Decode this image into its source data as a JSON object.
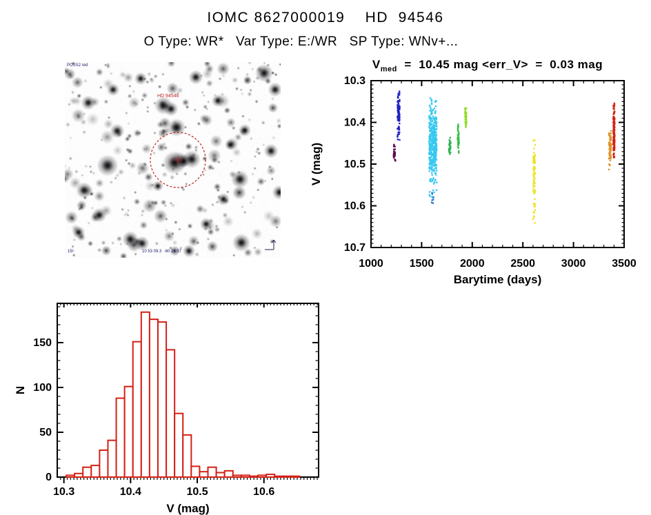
{
  "page": {
    "title": "IOMC 8627000019    HD  94546",
    "subtitle": "O Type: WR*   Var Type: E:/WR   SP Type: WNv+..."
  },
  "finder": {
    "survey_label": "POSS2 red",
    "target_label": "HD 94546",
    "coords_label": "10 53 09.3  -60 26 57",
    "scale_label": "15'",
    "circle_color": "#c22222",
    "seed": 77421,
    "n_random_stars": 320,
    "big_stars": [
      [
        159,
        146,
        6.5
      ],
      [
        184,
        141,
        5
      ],
      [
        172,
        144,
        3.5
      ],
      [
        162,
        95,
        5
      ],
      [
        143,
        63,
        5
      ],
      [
        154,
        68,
        4
      ],
      [
        190,
        22,
        4
      ],
      [
        110,
        24,
        3.5
      ],
      [
        62,
        150,
        6
      ],
      [
        28,
        186,
        4.5
      ],
      [
        76,
        100,
        4
      ],
      [
        34,
        59,
        4
      ],
      [
        289,
        16,
        5
      ],
      [
        254,
        170,
        5
      ],
      [
        256,
        262,
        5
      ],
      [
        95,
        257,
        4.5
      ],
      [
        112,
        263,
        4
      ],
      [
        222,
        56,
        3.5
      ],
      [
        305,
        40,
        4
      ],
      [
        299,
        129,
        4
      ],
      [
        20,
        247,
        3.5
      ],
      [
        230,
        199,
        3.5
      ],
      [
        261,
        99,
        3.5
      ],
      [
        311,
        189,
        4
      ],
      [
        180,
        274,
        3.5
      ],
      [
        50,
        222,
        4
      ],
      [
        135,
        180,
        3
      ],
      [
        205,
        235,
        3.5
      ],
      [
        240,
        120,
        3
      ],
      [
        70,
        40,
        3.5
      ]
    ]
  },
  "chart_data": [
    {
      "type": "scatter",
      "name": "lightcurve",
      "title": {
        "prefix": "V",
        "sub": "med",
        "rest": "  =  10.45 mag <err_V>  =  0.03 mag"
      },
      "xlabel": "Barytime (days)",
      "ylabel": "V (mag)",
      "xlim": [
        1000,
        3500
      ],
      "ylim": [
        10.3,
        10.7
      ],
      "y_inverted_magnitudes": true,
      "xticks": [
        1000,
        1500,
        2000,
        2500,
        3000,
        3500
      ],
      "yticks": [
        10.3,
        10.4,
        10.5,
        10.6,
        10.7
      ],
      "x_minor_step": 100,
      "y_minor_step": 0.01,
      "grid": false,
      "legend": false,
      "v_med": 10.45,
      "err_v": 0.03,
      "clusters": [
        {
          "label": "epoch-1230",
          "color": "#5e0b54",
          "t": 1232,
          "t_spread": 18,
          "n": 30,
          "v_mean": 10.472,
          "v_sigma": 0.012,
          "v_min": 10.448,
          "v_max": 10.497
        },
        {
          "label": "epoch-1270",
          "color": "#2222c0",
          "t": 1272,
          "t_spread": 22,
          "n": 95,
          "v_mean": 10.382,
          "v_sigma": 0.028,
          "v_min": 10.322,
          "v_max": 10.452
        },
        {
          "label": "epoch-1610",
          "color": "#38c8f0",
          "t": 1612,
          "t_spread": 75,
          "n": 430,
          "v_mean": 10.452,
          "v_sigma": 0.047,
          "v_min": 10.298,
          "v_max": 10.582
        },
        {
          "label": "epoch-1610-faint",
          "color": "#2c78cc",
          "t": 1612,
          "t_spread": 40,
          "n": 7,
          "v_mean": 10.59,
          "v_sigma": 0.012,
          "v_min": 10.568,
          "v_max": 10.605
        },
        {
          "label": "epoch-1775",
          "color": "#2eb34f",
          "t": 1778,
          "t_spread": 16,
          "n": 30,
          "v_mean": 10.455,
          "v_sigma": 0.011,
          "v_min": 10.436,
          "v_max": 10.476
        },
        {
          "label": "epoch-1860",
          "color": "#35bd42",
          "t": 1862,
          "t_spread": 14,
          "n": 34,
          "v_mean": 10.44,
          "v_sigma": 0.02,
          "v_min": 10.404,
          "v_max": 10.482
        },
        {
          "label": "epoch-1935",
          "color": "#90dc26",
          "t": 1936,
          "t_spread": 14,
          "n": 38,
          "v_mean": 10.39,
          "v_sigma": 0.013,
          "v_min": 10.364,
          "v_max": 10.414
        },
        {
          "label": "epoch-2610",
          "color": "#efe227",
          "t": 2612,
          "t_spread": 20,
          "n": 68,
          "v_mean": 10.53,
          "v_sigma": 0.055,
          "v_min": 10.438,
          "v_max": 10.648
        },
        {
          "label": "epoch-3360",
          "color": "#dd9328",
          "t": 3362,
          "t_spread": 24,
          "n": 60,
          "v_mean": 10.465,
          "v_sigma": 0.026,
          "v_min": 10.42,
          "v_max": 10.525
        },
        {
          "label": "epoch-3400",
          "color": "#d52312",
          "t": 3400,
          "t_spread": 14,
          "n": 140,
          "v_mean": 10.425,
          "v_sigma": 0.03,
          "v_min": 10.352,
          "v_max": 10.492
        }
      ]
    },
    {
      "type": "histogram",
      "name": "v-distribution",
      "xlabel": "V (mag)",
      "ylabel": "N",
      "color": "#d42015",
      "bin_start": 10.3035,
      "bin_width": 0.0125,
      "values": [
        2,
        4,
        11,
        13,
        30,
        41,
        88,
        101,
        151,
        184,
        176,
        173,
        142,
        71,
        47,
        12,
        6,
        11,
        5,
        7,
        2,
        2,
        1,
        2,
        3,
        1,
        1,
        1
      ],
      "xticks": [
        10.3,
        10.4,
        10.5,
        10.6
      ],
      "yticks": [
        0,
        50,
        100,
        150
      ],
      "x_minor_step": 0.005,
      "y_minor_step": 10,
      "xlim": [
        10.29,
        10.682
      ],
      "ylim": [
        0,
        193.8
      ],
      "grid": false,
      "legend": false
    }
  ]
}
